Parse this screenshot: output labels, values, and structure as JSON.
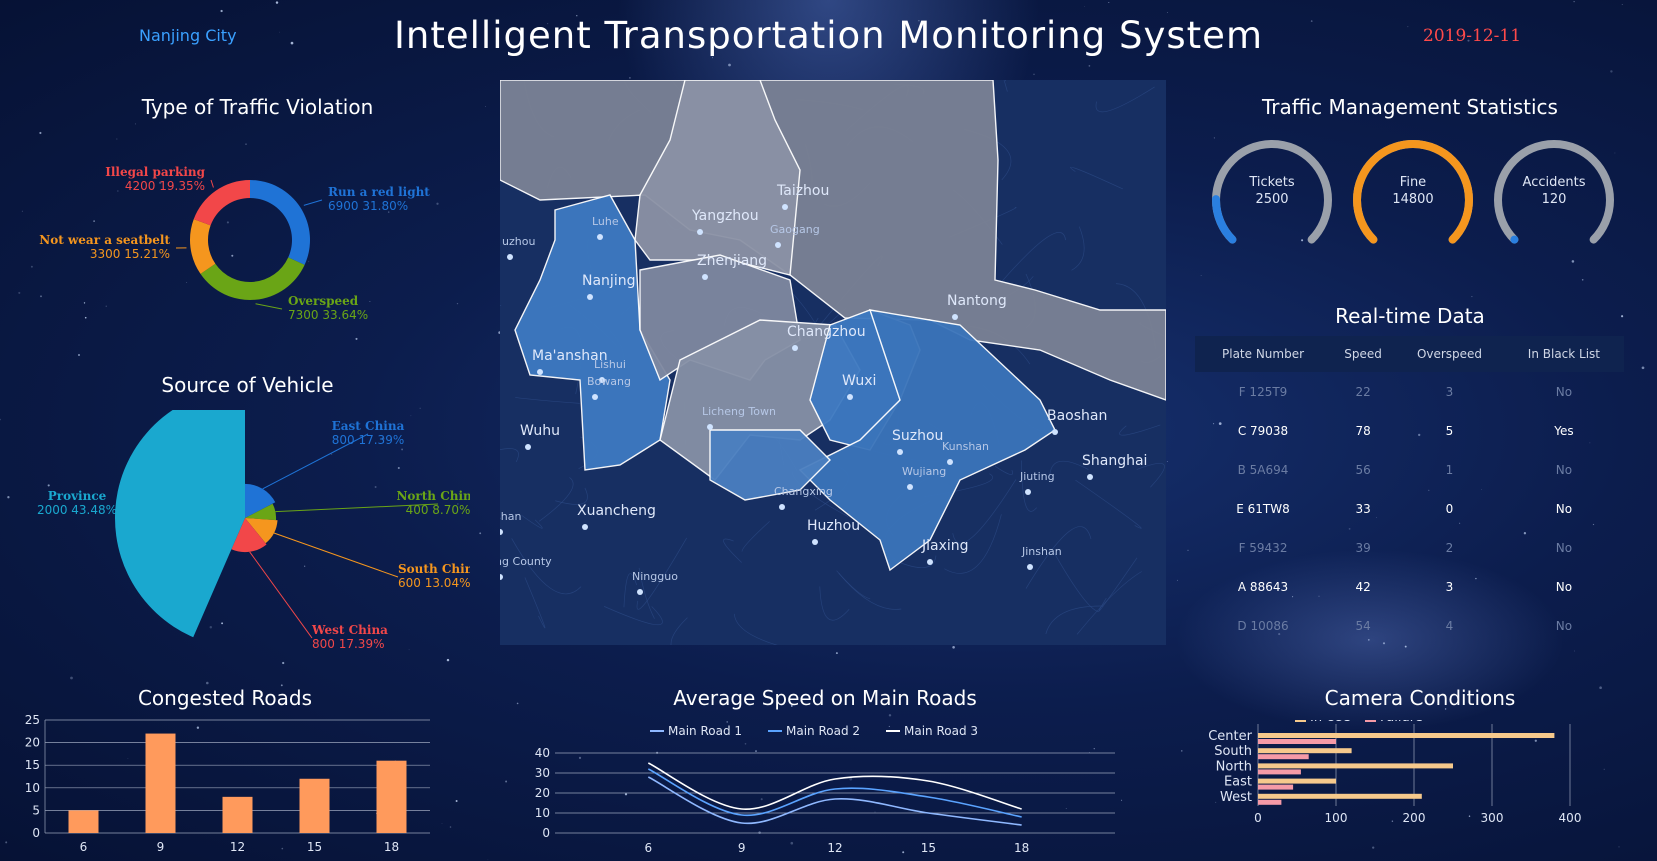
{
  "header": {
    "city": "Nanjing City",
    "title": "Intelligent Transportation Monitoring System",
    "date": "2019-12-11"
  },
  "violation": {
    "title": "Type of Traffic Violation",
    "chart_data": {
      "type": "pie",
      "categories": [
        "Run a red light",
        "Overspeed",
        "Not wear a seatbelt",
        "Illegal parking"
      ],
      "values": [
        6900,
        7300,
        3300,
        4200
      ],
      "percent_labels": [
        "6900  31.80%",
        "7300  33.64%",
        "3300  15.21%",
        "4200  19.35%"
      ],
      "colors": [
        "#1f73d6",
        "#6aa516",
        "#f5961e",
        "#f24749"
      ]
    }
  },
  "source": {
    "title": "Source of Vehicle",
    "chart_data": {
      "type": "pie",
      "categories": [
        "East China",
        "North China",
        "South China",
        "West China",
        "Province"
      ],
      "values": [
        800,
        400,
        600,
        800,
        2000
      ],
      "percent_labels": [
        "800  17.39%",
        "400  8.70%",
        "600  13.04%",
        "800  17.39%",
        "2000  43.48%"
      ],
      "colors": [
        "#1f73d6",
        "#6aa516",
        "#f5961e",
        "#f24749",
        "#1aa8cf"
      ]
    }
  },
  "map": {
    "cities": [
      "Yangzhou",
      "Taizhou",
      "Gaogang",
      "Zhenjiang",
      "Nanjing",
      "Luhe",
      "Nantong",
      "Changzhou",
      "Ma'anshan",
      "Bowang",
      "Lishui",
      "Wuxi",
      "Baoshan",
      "Suzhou",
      "Shanghai",
      "Kunshan",
      "Wujiang",
      "Jiuting",
      "Wuhu",
      "Changxing",
      "Xuancheng",
      "Huzhou",
      "Jiaxing",
      "Jinshan",
      "Ningguo",
      "uzhou",
      "Licheng Town",
      "ishan",
      "ing County"
    ]
  },
  "management": {
    "title": "Traffic Management Statistics",
    "gauges": [
      {
        "label": "Tickets",
        "value": "2500",
        "fraction": 0.17,
        "color": "#2a7fe0"
      },
      {
        "label": "Fine",
        "value": "14800",
        "fraction": 1.0,
        "color": "#f5961e"
      },
      {
        "label": "Accidents",
        "value": "120",
        "fraction": 0.0,
        "color": "#2a7fe0"
      }
    ]
  },
  "realtime": {
    "title": "Real-time Data",
    "columns": [
      "Plate Number",
      "Speed",
      "Overspeed",
      "In Black List"
    ],
    "rows": [
      [
        "F 125T9",
        "22",
        "3",
        "No"
      ],
      [
        "C 79038",
        "78",
        "5",
        "Yes"
      ],
      [
        "B 5A694",
        "56",
        "1",
        "No"
      ],
      [
        "E 61TW8",
        "33",
        "0",
        "No"
      ],
      [
        "F 59432",
        "39",
        "2",
        "No"
      ],
      [
        "A 88643",
        "42",
        "3",
        "No"
      ],
      [
        "D 10086",
        "54",
        "4",
        "No"
      ]
    ]
  },
  "congested": {
    "title": "Congested Roads",
    "chart_data": {
      "type": "bar",
      "categories": [
        "6",
        "9",
        "12",
        "15",
        "18"
      ],
      "values": [
        5,
        22,
        8,
        12,
        16
      ],
      "ylim": [
        0,
        25
      ],
      "yticks": [
        "0",
        "5",
        "10",
        "15",
        "20",
        "25"
      ],
      "color": "#ff9a5c"
    }
  },
  "speed": {
    "title": "Average Speed on Main Roads",
    "chart_data": {
      "type": "line",
      "x": [
        6,
        9,
        12,
        15,
        18
      ],
      "xticks": [
        "6",
        "9",
        "12",
        "15",
        "18"
      ],
      "yticks": [
        "0",
        "10",
        "20",
        "30",
        "40"
      ],
      "ylim": [
        0,
        40
      ],
      "series": [
        {
          "name": "Main Road 1",
          "values": [
            28,
            5,
            17,
            10,
            4
          ],
          "color": "#8fb8ff"
        },
        {
          "name": "Main Road 2",
          "values": [
            32,
            9,
            22,
            18,
            8
          ],
          "color": "#5aa3ff"
        },
        {
          "name": "Main Road 3",
          "values": [
            35,
            12,
            27,
            26,
            12
          ],
          "color": "#ffffff"
        }
      ]
    }
  },
  "camera": {
    "title": "Camera Conditions",
    "chart_data": {
      "type": "bar",
      "orientation": "horizontal",
      "categories": [
        "Center",
        "South",
        "North",
        "East",
        "West"
      ],
      "xticks": [
        "0",
        "100",
        "200",
        "300",
        "400"
      ],
      "xlim": [
        0,
        400
      ],
      "series": [
        {
          "name": "In Use",
          "values": [
            380,
            120,
            250,
            100,
            210
          ],
          "color": "#f6c98c"
        },
        {
          "name": "Failure",
          "values": [
            100,
            65,
            55,
            45,
            30
          ],
          "color": "#f59aa7"
        }
      ],
      "legend_visible": [
        "In Use",
        "Failure"
      ]
    }
  }
}
